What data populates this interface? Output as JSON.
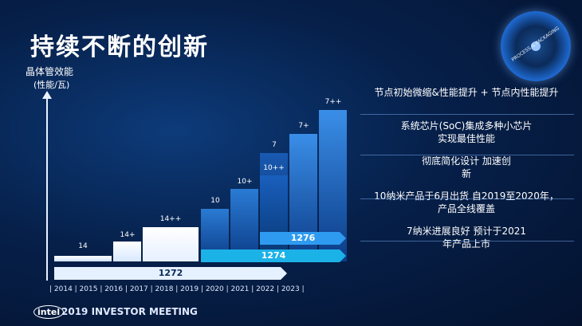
{
  "title": "持续不断的创新",
  "y_axis": {
    "label": "晶体管效能",
    "sublabel": "(性能/瓦)"
  },
  "bars": [
    {
      "label": "14",
      "colors": [
        "#ffffff",
        "#cfe3ff"
      ]
    },
    {
      "label": "14+",
      "colors": [
        "#ffffff",
        "#d8e8ff"
      ]
    },
    {
      "label": "14++",
      "colors": [
        "#ffffff",
        "#e6f0ff"
      ]
    },
    {
      "label": "10",
      "colors": [
        "#2a7bd4",
        "#0b3b86"
      ]
    },
    {
      "label": "10+",
      "colors": [
        "#2a7bd4",
        "#0b3b86"
      ]
    },
    {
      "label": "7",
      "inner": "10++",
      "colors": [
        "#1e6ad2",
        "#07356f"
      ]
    },
    {
      "label": "7+",
      "colors": [
        "#3a8ee8",
        "#0b3b86"
      ]
    },
    {
      "label": "7++",
      "colors": [
        "#3a8ee8",
        "#0b3b86"
      ]
    }
  ],
  "roadmaps": [
    {
      "label": "1276",
      "color": "#2e9bf0"
    },
    {
      "label": "1274",
      "color": "#1bb2e8"
    },
    {
      "label": "1272",
      "color": "#e6f1ff"
    }
  ],
  "years": "| 2014 | 2015 | 2016 | 2017 | 2018 | 2019 | 2020 | 2021 | 2022 | 2023 |",
  "notes": [
    "节点初始微缩&性能提升 + 节点内性能提升",
    "系统芯片(SoC)集成多种小芯片 实现最佳性能",
    "彻底简化设计 加速创新",
    "10纳米产品于6月出货 自2019至2020年，产品全线覆盖",
    "7纳米进展良好 预计于2021年产品上市"
  ],
  "footer": {
    "brand": "intel",
    "event": "2019 INVESTOR MEETING"
  },
  "badge": "PROCESS & PACKAGING"
}
